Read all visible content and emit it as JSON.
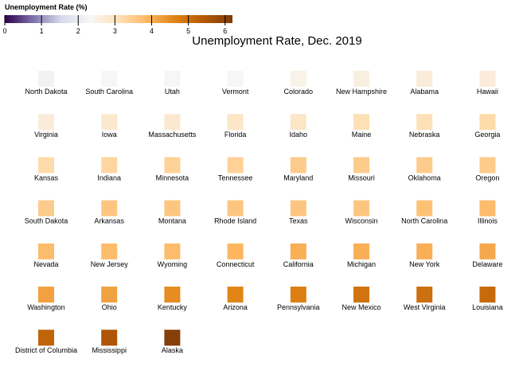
{
  "chart_data": {
    "type": "heatmap",
    "title": "Unemployment Rate, Dec. 2019",
    "legend": {
      "title": "Unemployment Rate (%)",
      "domain": [
        0,
        6.2
      ],
      "ticks": [
        "0",
        "1",
        "2",
        "3",
        "4",
        "5",
        "6"
      ],
      "placement": "top-left",
      "colors": [
        "#2d004b",
        "#8073ac",
        "#d8daeb",
        "#f7f7f7",
        "#fee0b6",
        "#fdb863",
        "#e08214",
        "#b35806",
        "#7f3b08"
      ]
    },
    "columns": 8,
    "states": [
      {
        "name": "North Dakota",
        "value": 2.2
      },
      {
        "name": "South Carolina",
        "value": 2.3
      },
      {
        "name": "Utah",
        "value": 2.3
      },
      {
        "name": "Vermont",
        "value": 2.3
      },
      {
        "name": "Colorado",
        "value": 2.5
      },
      {
        "name": "New Hampshire",
        "value": 2.6
      },
      {
        "name": "Alabama",
        "value": 2.7
      },
      {
        "name": "Hawaii",
        "value": 2.7
      },
      {
        "name": "Virginia",
        "value": 2.7
      },
      {
        "name": "Iowa",
        "value": 2.8
      },
      {
        "name": "Massachusetts",
        "value": 2.8
      },
      {
        "name": "Florida",
        "value": 2.9
      },
      {
        "name": "Idaho",
        "value": 2.9
      },
      {
        "name": "Maine",
        "value": 3.1
      },
      {
        "name": "Nebraska",
        "value": 3.1
      },
      {
        "name": "Georgia",
        "value": 3.2
      },
      {
        "name": "Kansas",
        "value": 3.2
      },
      {
        "name": "Indiana",
        "value": 3.3
      },
      {
        "name": "Minnesota",
        "value": 3.4
      },
      {
        "name": "Tennessee",
        "value": 3.4
      },
      {
        "name": "Maryland",
        "value": 3.5
      },
      {
        "name": "Missouri",
        "value": 3.5
      },
      {
        "name": "Oklahoma",
        "value": 3.5
      },
      {
        "name": "Oregon",
        "value": 3.5
      },
      {
        "name": "South Dakota",
        "value": 3.5
      },
      {
        "name": "Arkansas",
        "value": 3.6
      },
      {
        "name": "Montana",
        "value": 3.6
      },
      {
        "name": "Rhode Island",
        "value": 3.6
      },
      {
        "name": "Texas",
        "value": 3.6
      },
      {
        "name": "Wisconsin",
        "value": 3.6
      },
      {
        "name": "North Carolina",
        "value": 3.7
      },
      {
        "name": "Illinois",
        "value": 3.8
      },
      {
        "name": "Nevada",
        "value": 3.8
      },
      {
        "name": "New Jersey",
        "value": 3.8
      },
      {
        "name": "Wyoming",
        "value": 3.8
      },
      {
        "name": "Connecticut",
        "value": 3.9
      },
      {
        "name": "California",
        "value": 4.0
      },
      {
        "name": "Michigan",
        "value": 4.0
      },
      {
        "name": "New York",
        "value": 4.0
      },
      {
        "name": "Delaware",
        "value": 4.1
      },
      {
        "name": "Washington",
        "value": 4.2
      },
      {
        "name": "Ohio",
        "value": 4.2
      },
      {
        "name": "Kentucky",
        "value": 4.5
      },
      {
        "name": "Arizona",
        "value": 4.6
      },
      {
        "name": "Pennsylvania",
        "value": 4.7
      },
      {
        "name": "New Mexico",
        "value": 4.9
      },
      {
        "name": "West Virginia",
        "value": 5.0
      },
      {
        "name": "Louisiana",
        "value": 5.1
      },
      {
        "name": "District of Columbia",
        "value": 5.2
      },
      {
        "name": "Mississippi",
        "value": 5.5
      },
      {
        "name": "Alaska",
        "value": 6.1
      }
    ]
  }
}
